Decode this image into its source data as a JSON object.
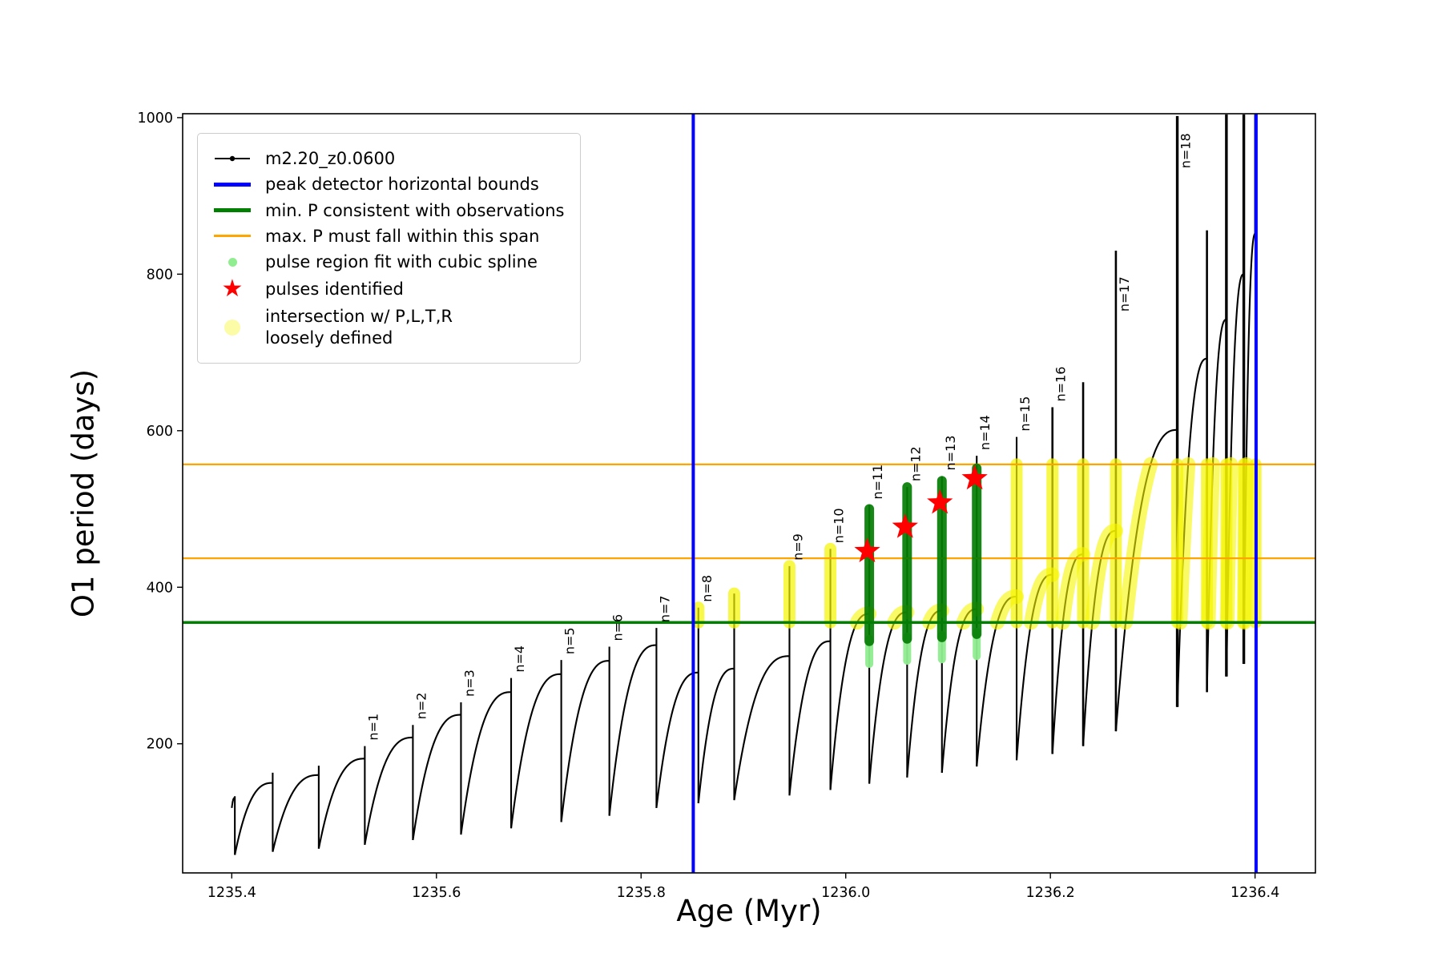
{
  "chart_data": {
    "type": "line",
    "title": "",
    "xlabel": "Age (Myr)",
    "ylabel": "O1 period (days)",
    "xlim": [
      1235.352,
      1236.459
    ],
    "ylim": [
      35,
      1005
    ],
    "xticks": [
      1235.4,
      1235.6,
      1235.8,
      1236.0,
      1236.2,
      1236.4
    ],
    "yticks": [
      200,
      400,
      600,
      800,
      1000
    ],
    "series_name": "m2.20_z0.0600",
    "series_color": "#000000",
    "pulses": [
      {
        "x0": 1235.4,
        "xp": 1235.403,
        "base": 118,
        "plateau": 131,
        "top": 133
      },
      {
        "x0": 1235.403,
        "xp": 1235.44,
        "base": 58,
        "plateau": 150,
        "top": 163
      },
      {
        "x0": 1235.44,
        "xp": 1235.485,
        "base": 62,
        "plateau": 160,
        "top": 172
      },
      {
        "label": "n=1",
        "x0": 1235.485,
        "xp": 1235.53,
        "base": 66,
        "plateau": 181,
        "top": 197
      },
      {
        "label": "n=2",
        "x0": 1235.53,
        "xp": 1235.577,
        "base": 71,
        "plateau": 208,
        "top": 224
      },
      {
        "label": "n=3",
        "x0": 1235.577,
        "xp": 1235.624,
        "base": 77,
        "plateau": 237,
        "top": 253
      },
      {
        "label": "n=4",
        "x0": 1235.624,
        "xp": 1235.673,
        "base": 84,
        "plateau": 266,
        "top": 284
      },
      {
        "label": "n=5",
        "x0": 1235.673,
        "xp": 1235.722,
        "base": 92,
        "plateau": 289,
        "top": 307
      },
      {
        "label": "n=6",
        "x0": 1235.722,
        "xp": 1235.769,
        "base": 100,
        "plateau": 306,
        "top": 324
      },
      {
        "label": "n=7",
        "x0": 1235.769,
        "xp": 1235.815,
        "base": 108,
        "plateau": 326,
        "top": 348
      },
      {
        "label": "n=8",
        "x0": 1235.815,
        "xp": 1235.856,
        "base": 118,
        "plateau": 291,
        "top": 374
      },
      {
        "x0": 1235.856,
        "xp": 1235.891,
        "base": 124,
        "plateau": 296,
        "top": 392
      },
      {
        "label": "n=9",
        "x0": 1235.891,
        "xp": 1235.945,
        "base": 128,
        "plateau": 312,
        "top": 427
      },
      {
        "label": "n=10",
        "x0": 1235.945,
        "xp": 1235.985,
        "base": 134,
        "plateau": 331,
        "top": 449
      },
      {
        "label": "n=11",
        "x0": 1235.985,
        "xp": 1236.023,
        "base": 141,
        "plateau": 366,
        "top": 505,
        "spline": true
      },
      {
        "label": "n=12",
        "x0": 1236.023,
        "xp": 1236.06,
        "base": 149,
        "plateau": 368,
        "top": 528,
        "spline": true
      },
      {
        "label": "n=13",
        "x0": 1236.06,
        "xp": 1236.094,
        "base": 157,
        "plateau": 370,
        "top": 542,
        "spline": true
      },
      {
        "label": "n=14",
        "x0": 1236.094,
        "xp": 1236.128,
        "base": 163,
        "plateau": 372,
        "top": 568,
        "spline": true
      },
      {
        "label": "n=15",
        "x0": 1236.128,
        "xp": 1236.167,
        "base": 171,
        "plateau": 388,
        "top": 592
      },
      {
        "label": "n=16",
        "x0": 1236.167,
        "xp": 1236.202,
        "base": 179,
        "plateau": 416,
        "top": 630
      },
      {
        "x0": 1236.202,
        "xp": 1236.232,
        "base": 187,
        "plateau": 442,
        "top": 662
      },
      {
        "label": "n=17",
        "x0": 1236.232,
        "xp": 1236.264,
        "base": 197,
        "plateau": 472,
        "top": 830,
        "label_v": 745
      },
      {
        "label": "n=18",
        "x0": 1236.264,
        "xp": 1236.324,
        "base": 216,
        "plateau": 601,
        "top": 1002,
        "label_v": 928
      },
      {
        "x0": 1236.324,
        "xp": 1236.353,
        "base": 247,
        "plateau": 692,
        "top": 856
      },
      {
        "x0": 1236.353,
        "xp": 1236.372,
        "base": 266,
        "plateau": 742,
        "top": 1004
      },
      {
        "x0": 1236.372,
        "xp": 1236.389,
        "base": 286,
        "plateau": 800,
        "top": 1004
      },
      {
        "x0": 1236.389,
        "xp": 1236.4005,
        "base": 302,
        "plateau": 852,
        "top": 1004
      }
    ],
    "vlines": {
      "label": "peak detector horizontal bounds",
      "color": "#0000ff",
      "x": [
        1235.851,
        1236.401
      ],
      "width": 4
    },
    "hline_min_p": {
      "label": "min. P consistent with observations",
      "color": "#008000",
      "y": 355,
      "width": 3.5
    },
    "hlines_max_p": {
      "label": "max. P must fall within this span",
      "color": "#ffa500",
      "y": [
        437,
        557
      ],
      "width": 2.2
    },
    "spline": {
      "label": "pulse region fit with cubic spline",
      "light_color": "#90ee90",
      "dark_color": "#047d04",
      "columns": [
        {
          "x": 1236.023,
          "light": [
            302,
            334
          ],
          "dark": [
            331,
            500
          ]
        },
        {
          "x": 1236.06,
          "light": [
            306,
            337
          ],
          "dark": [
            334,
            528
          ]
        },
        {
          "x": 1236.094,
          "light": [
            308,
            339
          ],
          "dark": [
            336,
            536
          ]
        },
        {
          "x": 1236.128,
          "light": [
            312,
            343
          ],
          "dark": [
            340,
            552
          ]
        }
      ]
    },
    "stars": {
      "label": "pulses identified",
      "color": "#ff0000",
      "points": [
        {
          "x": 1236.021,
          "y": 446
        },
        {
          "x": 1236.058,
          "y": 477
        },
        {
          "x": 1236.092,
          "y": 508
        },
        {
          "x": 1236.126,
          "y": 539
        }
      ]
    },
    "yellow": {
      "label": "intersection w/ P,L,T,R\nloosely defined",
      "color": "#f6f600",
      "band": [
        355,
        557
      ],
      "x_min": 1235.85
    },
    "legend": {
      "entries": [
        {
          "label": "m2.20_z0.0600",
          "marker": "line-dot",
          "color": "#000000"
        },
        {
          "label": "peak detector horizontal bounds",
          "marker": "hline",
          "color": "#0000ff",
          "thickness": 5
        },
        {
          "label": "min. P consistent with observations",
          "marker": "hline",
          "color": "#008000",
          "thickness": 5
        },
        {
          "label": "max. P must fall within this span",
          "marker": "hline",
          "color": "#ffa500",
          "thickness": 3
        },
        {
          "label": "pulse region fit with cubic spline",
          "marker": "dot",
          "color": "#90ee90",
          "size": 11
        },
        {
          "label": "pulses identified",
          "marker": "star",
          "color": "#ff0000",
          "size": 30
        },
        {
          "label": "intersection w/ P,L,T,R\nloosely defined",
          "marker": "dot",
          "color": "rgba(246,246,0,0.35)",
          "size": 20
        }
      ]
    }
  }
}
